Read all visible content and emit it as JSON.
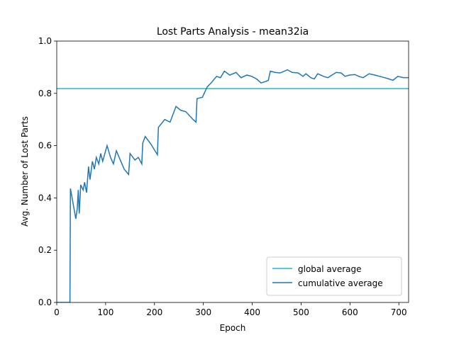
{
  "chart_data": {
    "type": "line",
    "title": "Lost Parts Analysis - mean32ia",
    "xlabel": "Epoch",
    "ylabel": "Avg. Number of Lost Parts",
    "xlim": [
      0,
      720
    ],
    "ylim": [
      0,
      1
    ],
    "xticks": [
      0,
      100,
      200,
      300,
      400,
      500,
      600,
      700
    ],
    "yticks": [
      {
        "value": 0,
        "label": "0.0"
      },
      {
        "value": 0.2,
        "label": "0.2"
      },
      {
        "value": 0.4,
        "label": "0.4"
      },
      {
        "value": 0.6,
        "label": "0.6"
      },
      {
        "value": 0.8,
        "label": "0.8"
      },
      {
        "value": 1,
        "label": "1.0"
      }
    ],
    "legend": "lower right",
    "series": [
      {
        "name": "global average",
        "color": "#17becf",
        "x": [
          0,
          720
        ],
        "values": [
          0.818,
          0.818
        ]
      },
      {
        "name": "cumulative average",
        "color": "#1f77b4",
        "x": [
          0,
          27,
          28,
          39,
          42,
          44,
          46,
          49,
          54,
          57,
          61,
          65,
          68,
          73,
          77,
          81,
          86,
          90,
          94,
          103,
          110,
          116,
          122,
          138,
          147,
          150,
          160,
          167,
          174,
          176,
          181,
          193,
          206,
          208,
          221,
          232,
          244,
          254,
          264,
          279,
          285,
          287,
          298,
          308,
          316,
          327,
          335,
          343,
          354,
          367,
          377,
          389,
          399,
          409,
          418,
          427,
          433,
          437,
          447,
          457,
          472,
          482,
          494,
          504,
          510,
          520,
          527,
          534,
          546,
          555,
          563,
          572,
          582,
          590,
          599,
          610,
          618,
          627,
          639,
          651,
          661,
          671,
          680,
          688,
          698,
          709,
          720
        ],
        "values": [
          0,
          0,
          0.436,
          0.32,
          0.36,
          0.43,
          0.34,
          0.45,
          0.43,
          0.46,
          0.42,
          0.52,
          0.47,
          0.54,
          0.51,
          0.555,
          0.53,
          0.57,
          0.54,
          0.6,
          0.555,
          0.53,
          0.58,
          0.51,
          0.49,
          0.57,
          0.545,
          0.555,
          0.53,
          0.61,
          0.635,
          0.605,
          0.565,
          0.67,
          0.7,
          0.69,
          0.75,
          0.735,
          0.73,
          0.7,
          0.69,
          0.78,
          0.785,
          0.825,
          0.84,
          0.865,
          0.86,
          0.885,
          0.87,
          0.88,
          0.86,
          0.87,
          0.865,
          0.855,
          0.84,
          0.845,
          0.85,
          0.885,
          0.88,
          0.878,
          0.89,
          0.88,
          0.878,
          0.865,
          0.875,
          0.86,
          0.855,
          0.875,
          0.865,
          0.86,
          0.87,
          0.88,
          0.878,
          0.865,
          0.87,
          0.872,
          0.865,
          0.86,
          0.875,
          0.87,
          0.865,
          0.86,
          0.855,
          0.85,
          0.865,
          0.86,
          0.86
        ]
      }
    ]
  }
}
